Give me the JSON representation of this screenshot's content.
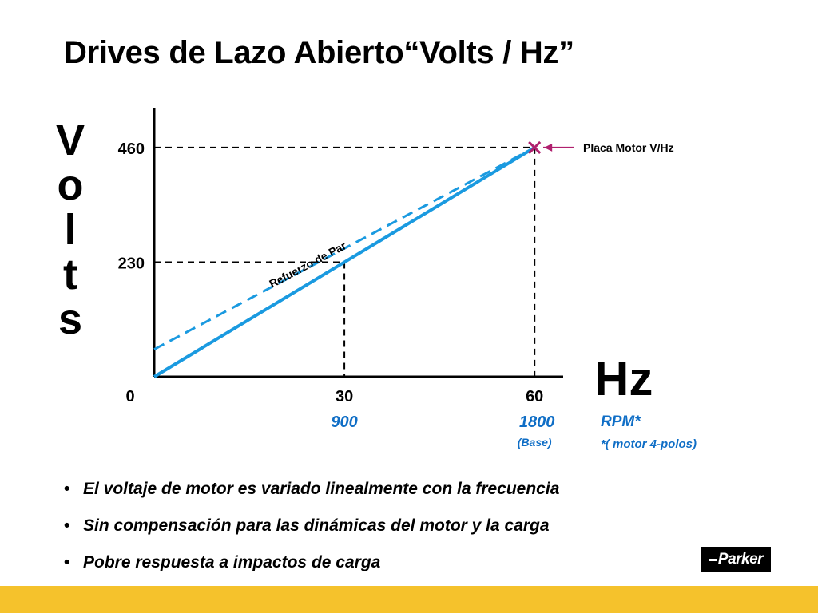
{
  "title": "Drives de Lazo Abierto“Volts / Hz”",
  "y_axis_letters": [
    "V",
    "o",
    "l",
    "t",
    "s"
  ],
  "x_axis_label": "Hz",
  "rpm_label": "RPM*",
  "rpm_note": "*( motor 4-polos)",
  "rpm_base_note": "(Base)",
  "chart_data": {
    "type": "line",
    "xlim": [
      0,
      63
    ],
    "ylim": [
      0,
      540
    ],
    "x_ticks": [
      "0",
      "30",
      "60"
    ],
    "x_tick_values": [
      0,
      30,
      60
    ],
    "rpm_ticks": [
      "900",
      "1800"
    ],
    "y_ticks": [
      "460",
      "230"
    ],
    "y_tick_values": [
      460,
      230
    ],
    "series": [
      {
        "name": "",
        "style": "solid",
        "color": "#1a9ae0",
        "x": [
          0,
          60
        ],
        "y": [
          0,
          460
        ]
      },
      {
        "name": "Refuerzo de Par",
        "style": "dashed",
        "color": "#1a9ae0",
        "x": [
          0,
          60
        ],
        "y": [
          55,
          460
        ]
      }
    ],
    "reference_lines": [
      {
        "x": 30,
        "y": 230
      },
      {
        "x": 60,
        "y": 460
      }
    ],
    "annotations": [
      {
        "text": "Refuerzo de Par",
        "x": 30,
        "y": 250
      },
      {
        "text": "Placa Motor V/Hz",
        "x": 60,
        "y": 460,
        "marker": "x",
        "marker_color": "#b0206e"
      }
    ]
  },
  "bullets": [
    "El voltaje de motor es variado linealmente con la frecuencia",
    "Sin compensación para las dinámicas del motor y la carga",
    "Pobre respuesta  a impactos de carga"
  ],
  "bullet_symbol": "•",
  "logo_text": "Parker",
  "colors": {
    "accent": "#1a9ae0",
    "rpm_text": "#0f6ec6",
    "marker": "#b0206e",
    "footer": "#f5c22c"
  }
}
